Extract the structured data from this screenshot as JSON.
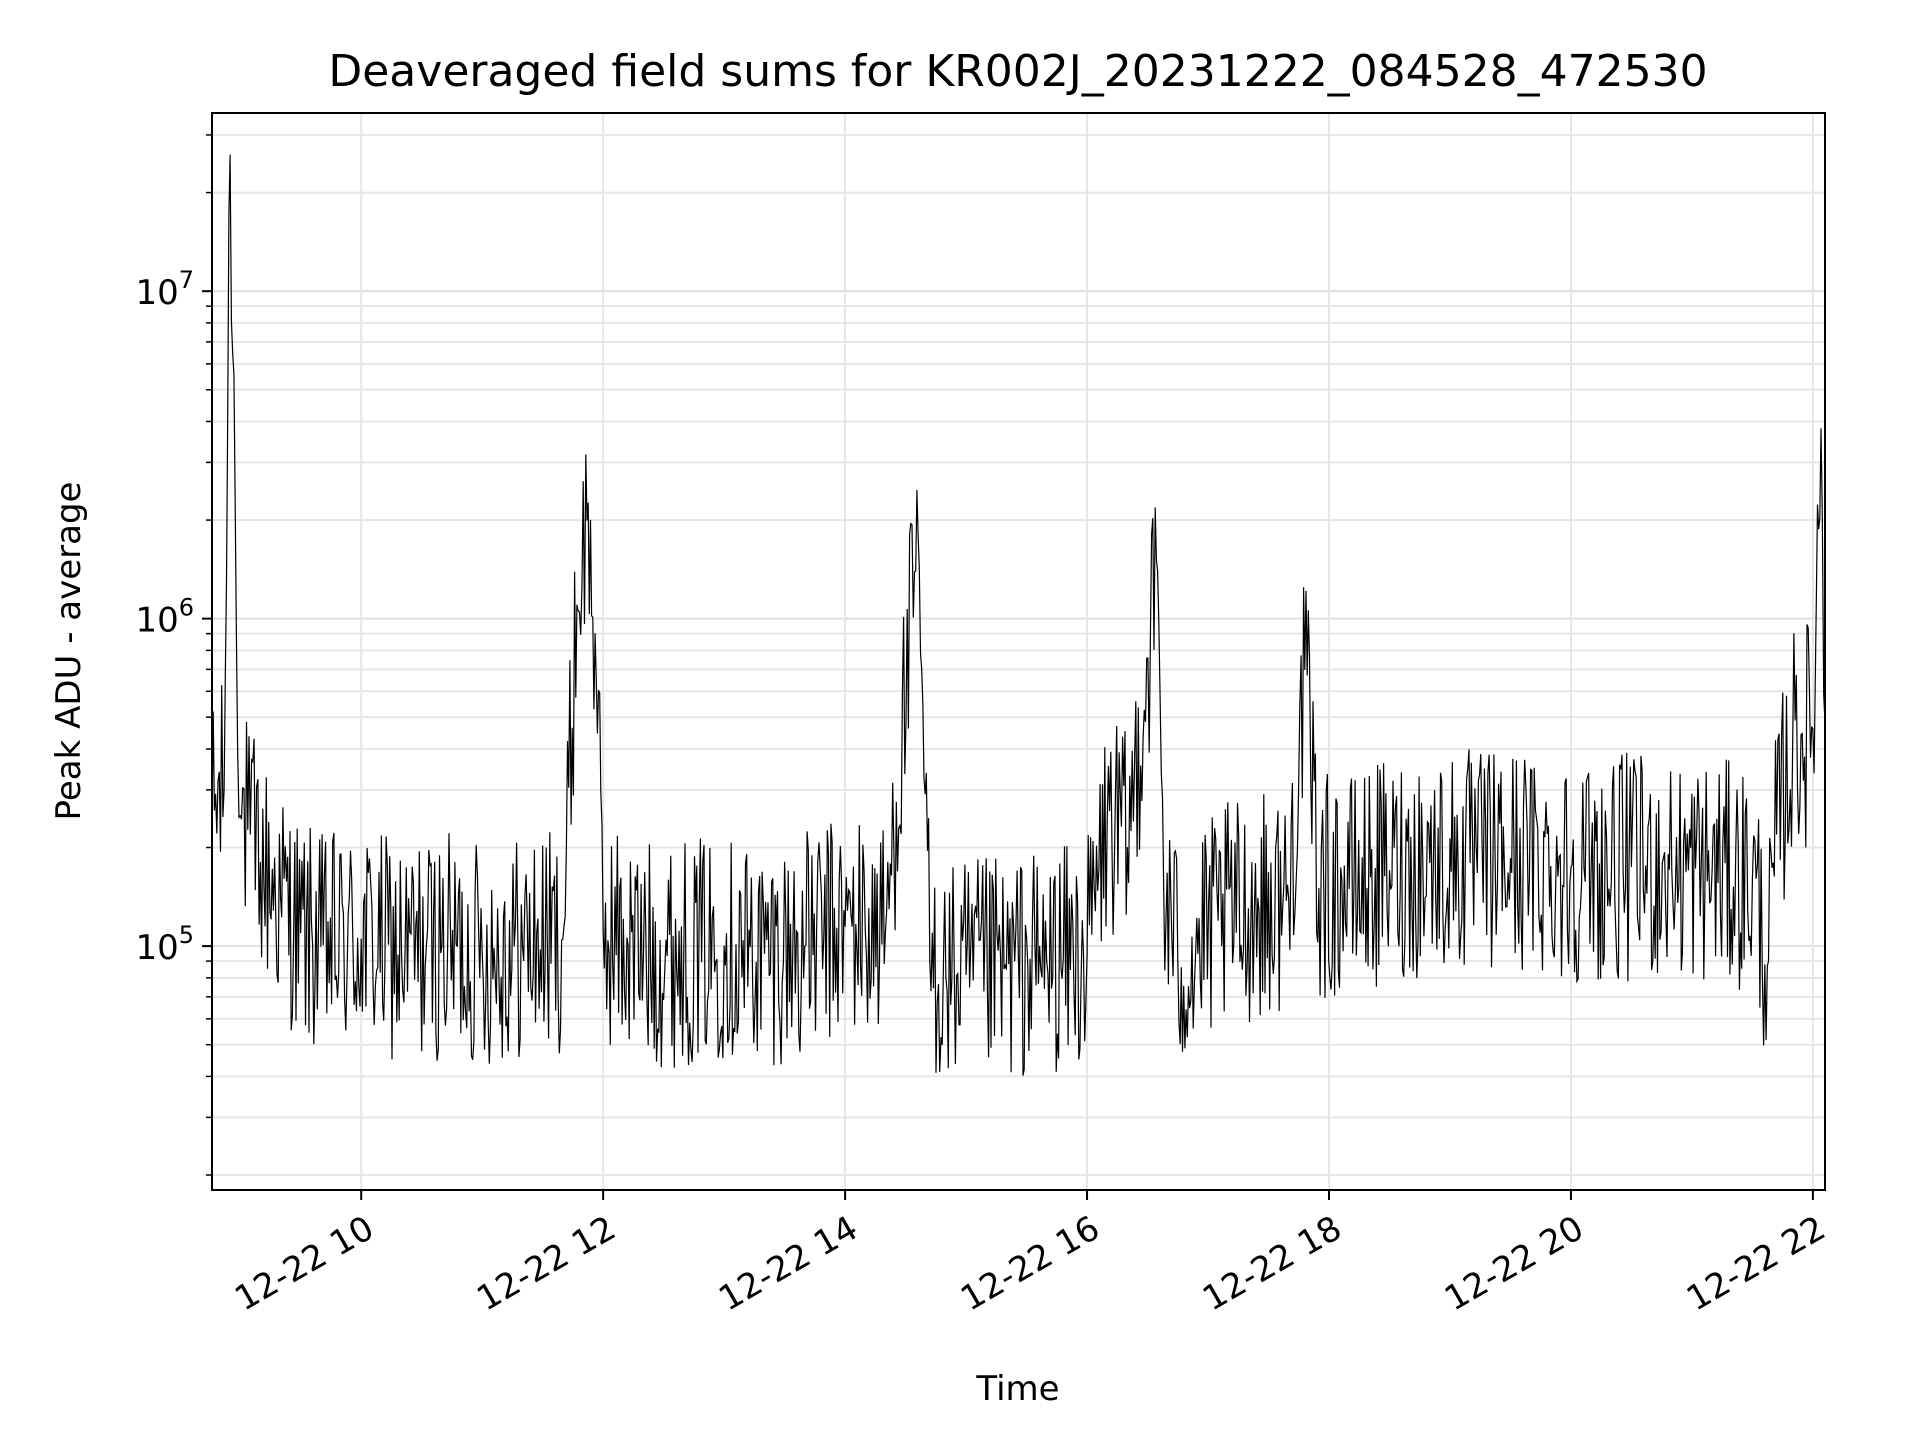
{
  "chart_data": {
    "type": "line",
    "title": "Deaveraged field sums for KR002J_20231222_084528_472530",
    "xlabel": "Time",
    "ylabel": "Peak ADU - average",
    "y_scale": "log",
    "ylim": [
      18000,
      35000000
    ],
    "x_range": [
      "12-22 08:46",
      "12-22 22:06"
    ],
    "x_ticks": [
      "12-22 10",
      "12-22 12",
      "12-22 14",
      "12-22 16",
      "12-22 18",
      "12-22 20",
      "12-22 22"
    ],
    "y_ticks": [
      {
        "base": "10",
        "exp": "5",
        "value": 100000
      },
      {
        "base": "10",
        "exp": "6",
        "value": 1000000
      },
      {
        "base": "10",
        "exp": "7",
        "value": 10000000
      }
    ],
    "grid": true,
    "line_color": "#000000",
    "series": [
      {
        "x": [
          "12-22 08:46",
          "12-22 08:52",
          "12-22 08:55",
          "12-22 09:00",
          "12-22 09:05",
          "12-22 09:10",
          "12-22 09:20",
          "12-22 09:30",
          "12-22 09:40",
          "12-22 10:00",
          "12-22 10:20",
          "12-22 10:40",
          "12-22 11:00",
          "12-22 11:20",
          "12-22 11:40",
          "12-22 11:47",
          "12-22 11:52",
          "12-22 11:56",
          "12-22 12:00",
          "12-22 12:20",
          "12-22 12:40",
          "12-22 13:00",
          "12-22 13:20",
          "12-22 13:40",
          "12-22 14:00",
          "12-22 14:20",
          "12-22 14:35",
          "12-22 14:38",
          "12-22 14:42",
          "12-22 14:50",
          "12-22 15:00",
          "12-22 15:20",
          "12-22 15:40",
          "12-22 16:00",
          "12-22 16:10",
          "12-22 16:20",
          "12-22 16:35",
          "12-22 16:38",
          "12-22 16:45",
          "12-22 16:55",
          "12-22 17:05",
          "12-22 17:20",
          "12-22 17:40",
          "12-22 17:48",
          "12-22 17:55",
          "12-22 18:10",
          "12-22 18:30",
          "12-22 18:50",
          "12-22 19:10",
          "12-22 19:30",
          "12-22 19:50",
          "12-22 20:10",
          "12-22 20:30",
          "12-22 20:50",
          "12-22 21:10",
          "12-22 21:30",
          "12-22 21:38",
          "12-22 21:42",
          "12-22 21:50",
          "12-22 22:00",
          "12-22 22:04",
          "12-22 22:06"
        ],
        "values": [
          250000,
          300000,
          26000000,
          250000,
          220000,
          180000,
          140000,
          110000,
          100000,
          105000,
          95000,
          100000,
          95000,
          100000,
          105000,
          1100000,
          2000000,
          900000,
          110000,
          95000,
          95000,
          100000,
          95000,
          100000,
          115000,
          110000,
          1400000,
          700000,
          90000,
          80000,
          82000,
          85000,
          90000,
          95000,
          240000,
          200000,
          1400000,
          150000,
          90000,
          95000,
          120000,
          130000,
          140000,
          700000,
          150000,
          150000,
          170000,
          180000,
          180000,
          185000,
          175000,
          170000,
          175000,
          170000,
          170000,
          160000,
          90000,
          220000,
          420000,
          460000,
          3800000,
          480000
        ]
      }
    ]
  }
}
